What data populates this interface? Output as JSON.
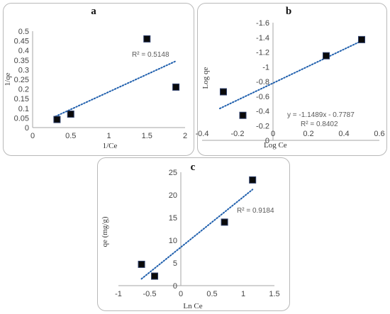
{
  "chart_data": [
    {
      "type": "scatter",
      "panel_label": "a",
      "xlabel": "1/Ce",
      "ylabel": "1/qe",
      "xlim": [
        0,
        2
      ],
      "ylim": [
        0,
        0.5
      ],
      "xticks": [
        "0",
        "0.5",
        "1",
        "1.5",
        "2"
      ],
      "yticks": [
        "0",
        "0.05",
        "0.1",
        "0.15",
        "0.2",
        "0.25",
        "0.3",
        "0.35",
        "0.4",
        "0.45",
        "0.5"
      ],
      "x": [
        0.32,
        0.5,
        1.5,
        1.88
      ],
      "y": [
        0.042,
        0.07,
        0.46,
        0.21
      ],
      "trendline": {
        "x": [
          0.3,
          1.88
        ],
        "y": [
          0.058,
          0.345
        ]
      },
      "annotations": [
        "R² = 0.5148"
      ],
      "grid": false,
      "marker_color": "#0a0a0a",
      "trend_color": "#1f5fad"
    },
    {
      "type": "scatter",
      "panel_label": "b",
      "xlabel": "Log Ce",
      "ylabel": "Log qe",
      "xlim": [
        -0.4,
        0.6
      ],
      "ylim": [
        -1.6,
        0
      ],
      "xticks": [
        "-0.4",
        "-0.2",
        "0",
        "0.2",
        "0.4",
        "0.6"
      ],
      "yticks": [
        "0",
        "-0.2",
        "-0.4",
        "-0.6",
        "-0.8",
        "-1",
        "-1.2",
        "-1.4",
        "-1.6"
      ],
      "x": [
        -0.28,
        -0.17,
        0.3,
        0.5
      ],
      "y": [
        -0.66,
        -0.34,
        -1.15,
        -1.37
      ],
      "trendline": {
        "x": [
          -0.3,
          0.52
        ],
        "y": [
          -0.433,
          -1.376
        ]
      },
      "annotations": [
        "y = -1.1489x - 0.7787",
        "R² = 0.8402"
      ],
      "grid": false,
      "marker_color": "#0a0a0a",
      "trend_color": "#1f5fad"
    },
    {
      "type": "scatter",
      "panel_label": "c",
      "xlabel": "Ln Ce",
      "ylabel": "qe (mg/g)",
      "xlim": [
        -1,
        1.5
      ],
      "ylim": [
        0,
        25
      ],
      "xticks": [
        "-1",
        "-0.5",
        "0",
        "0.5",
        "1",
        "1.5"
      ],
      "yticks": [
        "0",
        "5",
        "10",
        "15",
        "20",
        "25"
      ],
      "x": [
        -0.63,
        -0.42,
        0.7,
        1.15
      ],
      "y": [
        4.7,
        2.1,
        14,
        23.3
      ],
      "trendline": {
        "x": [
          -0.63,
          1.15
        ],
        "y": [
          1.5,
          21.2
        ]
      },
      "annotations": [
        "R² = 0.9184"
      ],
      "grid": false,
      "marker_color": "#0a0a0a",
      "trend_color": "#1f5fad"
    }
  ]
}
